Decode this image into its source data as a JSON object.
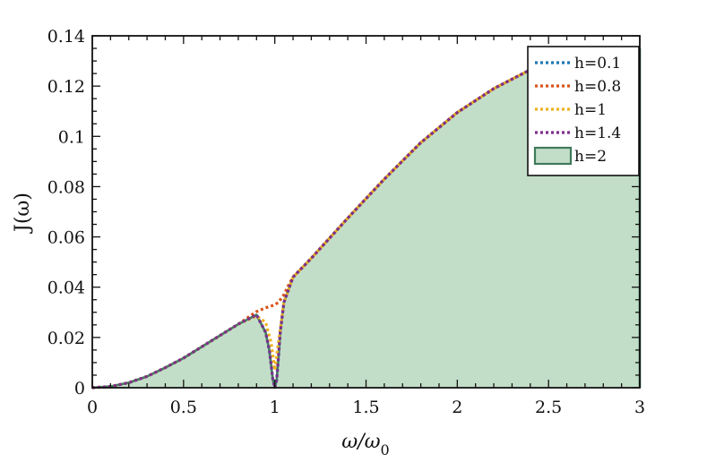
{
  "chart_data": {
    "type": "area",
    "xlabel": "ω/ω",
    "xlabel_sub": "0",
    "ylabel": "J(ω)",
    "xlim": [
      0,
      3
    ],
    "ylim": [
      0,
      0.14
    ],
    "xticks": [
      0,
      0.5,
      1,
      1.5,
      2,
      2.5,
      3
    ],
    "xtick_labels": [
      "0",
      "0.5",
      "1",
      "1.5",
      "2",
      "2.5",
      "3"
    ],
    "yticks": [
      0,
      0.02,
      0.04,
      0.06,
      0.08,
      0.1,
      0.12,
      0.14
    ],
    "ytick_labels": [
      "0",
      "0.02",
      "0.04",
      "0.06",
      "0.08",
      "0.1",
      "0.12",
      "0.14"
    ],
    "grid": false,
    "legend_position": "top-right",
    "series": [
      {
        "name": "h=0.1",
        "style": "dotted",
        "color": "#1f77b4",
        "x": [
          0,
          0.1,
          0.2,
          0.3,
          0.4,
          0.5,
          0.6,
          0.7,
          0.8,
          0.9,
          0.95,
          0.97,
          0.98,
          0.99,
          1.0,
          1.01,
          1.02,
          1.03,
          1.05,
          1.1,
          1.2,
          1.4,
          1.6,
          1.8,
          2.0,
          2.2,
          2.4,
          2.6,
          2.8,
          3.0
        ],
        "y": [
          0,
          0.0005,
          0.002,
          0.0045,
          0.008,
          0.0118,
          0.0163,
          0.0208,
          0.0253,
          0.029,
          0.022,
          0.015,
          0.009,
          0.003,
          0.0,
          0.003,
          0.012,
          0.022,
          0.034,
          0.044,
          0.0515,
          0.0675,
          0.083,
          0.0975,
          0.1095,
          0.119,
          0.1265,
          0.131,
          0.134,
          0.135
        ]
      },
      {
        "name": "h=0.8",
        "style": "dotted",
        "color": "#d95319",
        "x": [
          0,
          0.1,
          0.2,
          0.3,
          0.4,
          0.5,
          0.6,
          0.7,
          0.8,
          0.9,
          0.95,
          0.98,
          1.0,
          1.02,
          1.05,
          1.08,
          1.1,
          1.2,
          1.4,
          1.6,
          1.8,
          2.0,
          2.2,
          2.4,
          2.6,
          2.8,
          3.0
        ],
        "y": [
          0,
          0.0005,
          0.002,
          0.0045,
          0.008,
          0.0118,
          0.0163,
          0.0208,
          0.0253,
          0.0303,
          0.0318,
          0.0325,
          0.033,
          0.034,
          0.037,
          0.0415,
          0.044,
          0.0515,
          0.0675,
          0.083,
          0.0975,
          0.1095,
          0.119,
          0.1265,
          0.131,
          0.134,
          0.135
        ]
      },
      {
        "name": "h=1",
        "style": "dotted",
        "color": "#edb120",
        "x": [
          0,
          0.1,
          0.2,
          0.3,
          0.4,
          0.5,
          0.6,
          0.7,
          0.8,
          0.9,
          0.95,
          0.98,
          1.0,
          1.02,
          1.05,
          1.1,
          1.2,
          1.4,
          1.6,
          1.8,
          2.0,
          2.2,
          2.4,
          2.6,
          2.8,
          3.0
        ],
        "y": [
          0,
          0.0005,
          0.002,
          0.0045,
          0.008,
          0.0118,
          0.0163,
          0.0208,
          0.0253,
          0.0285,
          0.026,
          0.018,
          0.007,
          0.018,
          0.034,
          0.044,
          0.0515,
          0.0675,
          0.083,
          0.0975,
          0.1095,
          0.119,
          0.1265,
          0.131,
          0.134,
          0.135
        ]
      },
      {
        "name": "h=1.4",
        "style": "dotted",
        "color": "#7e2f8e",
        "x": [
          0,
          0.1,
          0.2,
          0.3,
          0.4,
          0.5,
          0.6,
          0.7,
          0.8,
          0.9,
          0.95,
          0.97,
          0.98,
          0.99,
          1.0,
          1.01,
          1.02,
          1.03,
          1.05,
          1.1,
          1.2,
          1.4,
          1.6,
          1.8,
          2.0,
          2.2,
          2.4,
          2.6,
          2.8,
          3.0
        ],
        "y": [
          0,
          0.0005,
          0.002,
          0.0045,
          0.008,
          0.0118,
          0.0163,
          0.0208,
          0.0253,
          0.029,
          0.022,
          0.015,
          0.009,
          0.003,
          0.0,
          0.003,
          0.012,
          0.022,
          0.034,
          0.044,
          0.0515,
          0.0675,
          0.083,
          0.0975,
          0.1095,
          0.119,
          0.1265,
          0.131,
          0.134,
          0.135
        ]
      },
      {
        "name": "h=2",
        "style": "filled",
        "color": "#3f7a5c",
        "fill": "#c2dec8",
        "x": [
          0,
          0.1,
          0.2,
          0.3,
          0.4,
          0.5,
          0.6,
          0.7,
          0.8,
          0.9,
          0.95,
          0.97,
          0.98,
          0.99,
          1.0,
          1.01,
          1.02,
          1.03,
          1.05,
          1.1,
          1.2,
          1.4,
          1.6,
          1.8,
          2.0,
          2.2,
          2.4,
          2.6,
          2.8,
          3.0
        ],
        "y": [
          0,
          0.0005,
          0.002,
          0.0045,
          0.008,
          0.0118,
          0.0163,
          0.0208,
          0.0253,
          0.029,
          0.022,
          0.015,
          0.009,
          0.003,
          0.0,
          0.003,
          0.012,
          0.022,
          0.034,
          0.044,
          0.0515,
          0.0675,
          0.083,
          0.0975,
          0.1095,
          0.119,
          0.1265,
          0.131,
          0.134,
          0.135
        ]
      }
    ]
  }
}
